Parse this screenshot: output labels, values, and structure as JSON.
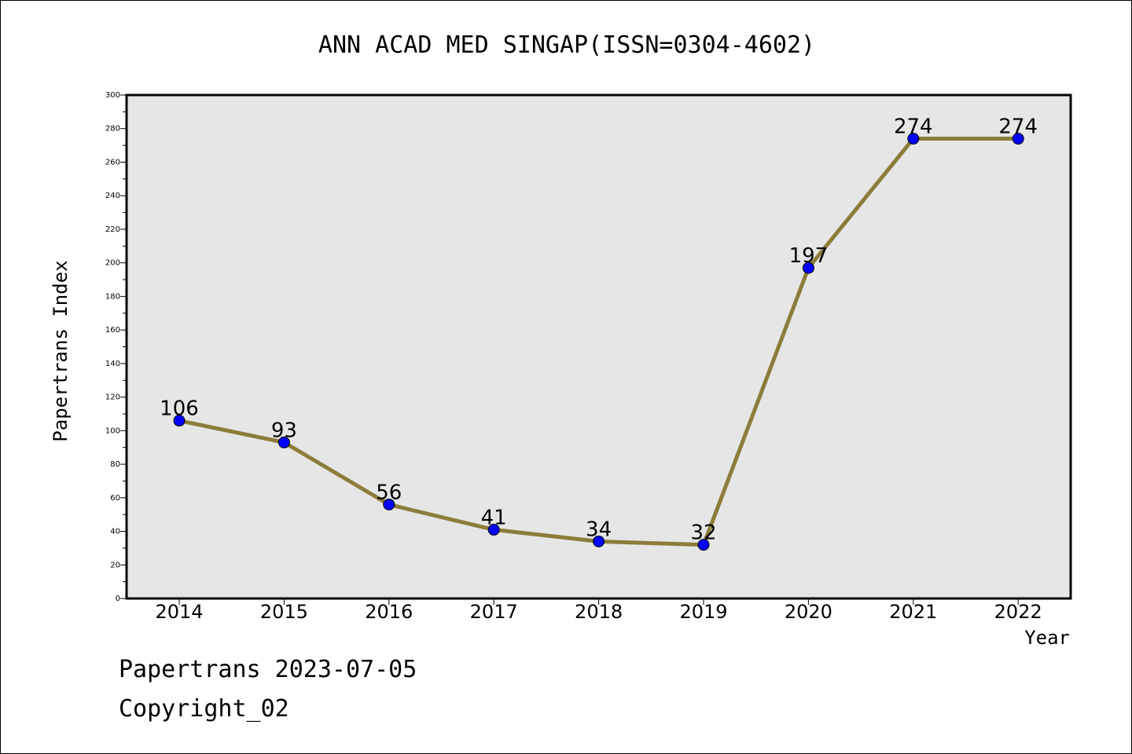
{
  "chart_data": {
    "type": "line",
    "title": "ANN ACAD MED SINGAP(ISSN=0304-4602)",
    "xlabel": "Year",
    "ylabel": "Papertrans Index",
    "categories": [
      "2014",
      "2015",
      "2016",
      "2017",
      "2018",
      "2019",
      "2020",
      "2021",
      "2022"
    ],
    "values": [
      106,
      93,
      56,
      41,
      34,
      32,
      197,
      274,
      274
    ],
    "data_labels": [
      "106",
      "93",
      "56",
      "41",
      "34",
      "32",
      "197",
      "274",
      "274"
    ],
    "ylim": [
      0,
      300
    ],
    "y_ticks": [
      0,
      20,
      40,
      60,
      80,
      100,
      120,
      140,
      160,
      180,
      200,
      220,
      240,
      260,
      280,
      300
    ],
    "grid": false,
    "legend": "none",
    "colors": {
      "line": "#8b7d3a",
      "marker": "#0000ff",
      "plot_background": "#e6e6e6"
    }
  },
  "footer": {
    "date_line": "Papertrans 2023-07-05",
    "copyright": "Copyright_02"
  }
}
